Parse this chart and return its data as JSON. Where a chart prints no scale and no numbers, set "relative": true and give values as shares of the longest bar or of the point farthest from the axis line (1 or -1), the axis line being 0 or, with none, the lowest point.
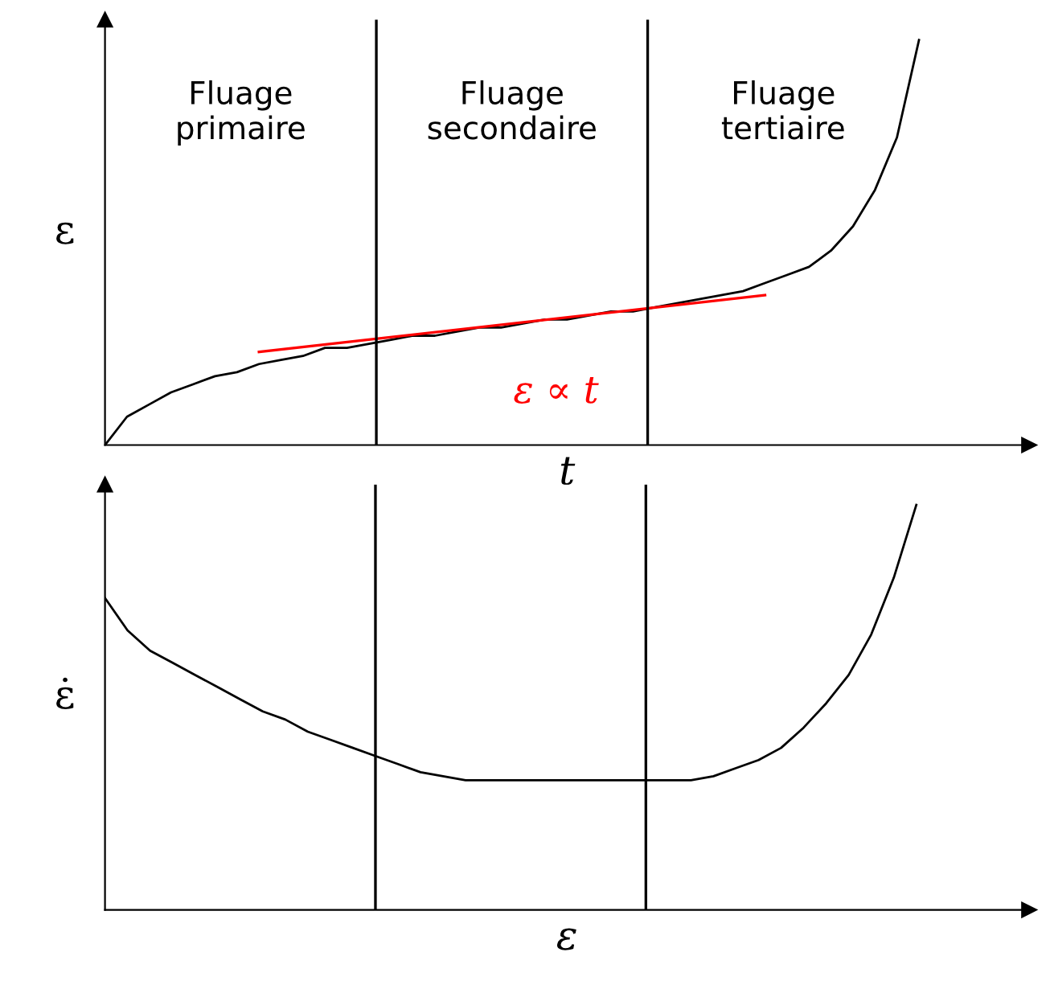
{
  "chart_data": [
    {
      "type": "line",
      "relative": true,
      "ylabel": "ε",
      "xlabel": "t",
      "legend": false,
      "categories": [
        null,
        null,
        null,
        null,
        null,
        null,
        null,
        null,
        null,
        null,
        null,
        null,
        null,
        null,
        null,
        null,
        null,
        null,
        null,
        null,
        null,
        null,
        null,
        null,
        null,
        null,
        null,
        null,
        null,
        null,
        null,
        null,
        null,
        null,
        null,
        null,
        null,
        null
      ],
      "series": [
        {
          "color": "#000000",
          "values": [
            0,
            0.07,
            0.1,
            0.13,
            0.15,
            0.17,
            0.18,
            0.2,
            0.21,
            0.22,
            0.24,
            0.24,
            0.25,
            0.26,
            0.27,
            0.27,
            0.28,
            0.29,
            0.29,
            0.3,
            0.31,
            0.31,
            0.32,
            0.33,
            0.33,
            0.34,
            0.35,
            0.36,
            0.37,
            0.38,
            0.4,
            0.42,
            0.44,
            0.48,
            0.54,
            0.63,
            0.76,
            1
          ]
        },
        {
          "color": "#ff0000",
          "values": [
            null,
            null,
            null,
            null,
            null,
            null,
            null,
            0.23,
            null,
            null,
            null,
            null,
            null,
            null,
            null,
            null,
            null,
            null,
            null,
            null,
            null,
            null,
            null,
            null,
            null,
            null,
            null,
            null,
            null,
            null,
            0.37,
            null,
            null,
            null,
            null,
            null,
            null,
            null
          ]
        }
      ],
      "annotations": [
        "Fluage\nprimaire",
        "Fluage\nsecondaire",
        "Fluage\ntertiaire",
        "ε ∝ t"
      ]
    },
    {
      "type": "line",
      "relative": true,
      "ylabel": "ε̇",
      "xlabel": "ε",
      "categories": [
        null,
        null,
        null,
        null,
        null,
        null,
        null,
        null,
        null,
        null,
        null,
        null,
        null,
        null,
        null,
        null,
        null,
        null,
        null,
        null,
        null,
        null,
        null,
        null,
        null,
        null,
        null,
        null,
        null,
        null,
        null,
        null,
        null,
        null,
        null,
        null,
        null
      ],
      "series": [
        {
          "color": "#000000",
          "values": [
            0.77,
            0.69,
            0.64,
            0.61,
            0.58,
            0.55,
            0.52,
            0.49,
            0.47,
            0.44,
            0.42,
            0.4,
            0.38,
            0.36,
            0.34,
            0.33,
            0.32,
            0.32,
            0.32,
            0.32,
            0.32,
            0.32,
            0.32,
            0.32,
            0.32,
            0.32,
            0.32,
            0.33,
            0.35,
            0.37,
            0.4,
            0.45,
            0.51,
            0.58,
            0.68,
            0.82,
            1
          ]
        }
      ],
      "legend": false
    }
  ]
}
